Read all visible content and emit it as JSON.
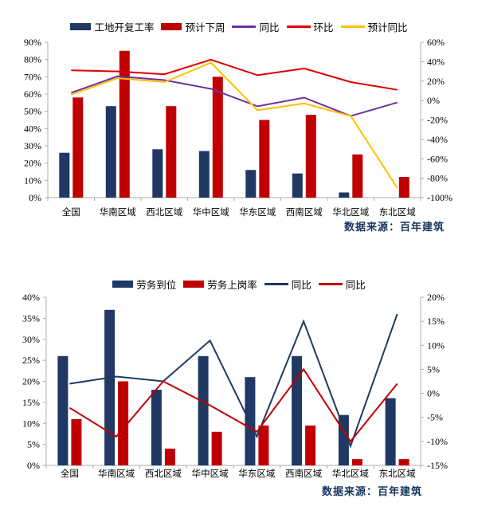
{
  "chart_data": [
    {
      "type": "bar+line",
      "title": "",
      "legend_position": "top",
      "grid": false,
      "source_note": "数据来源：百年建筑",
      "categories": [
        "全国",
        "华南区域",
        "西北区域",
        "华中区域",
        "华东区域",
        "西南区域",
        "华北区域",
        "东北区域"
      ],
      "bar_series": [
        {
          "name": "工地开复工率",
          "axis": "left",
          "color": "#1F3864",
          "values": [
            26,
            53,
            28,
            27,
            16,
            14,
            3,
            0
          ]
        },
        {
          "name": "预计下周",
          "axis": "left",
          "color": "#C00000",
          "values": [
            58,
            85,
            53,
            70,
            45,
            48,
            25,
            12
          ]
        }
      ],
      "line_series": [
        {
          "name": "同比",
          "axis": "right",
          "color": "#7030A0",
          "values": [
            8,
            25,
            21,
            12,
            -6,
            3,
            -16,
            -2
          ]
        },
        {
          "name": "环比",
          "axis": "right",
          "color": "#DD0000",
          "values": [
            31,
            30,
            27,
            42,
            26,
            33,
            19,
            11
          ]
        },
        {
          "name": "预计同比",
          "axis": "right",
          "color": "#FFC000",
          "values": [
            6,
            23,
            19,
            39,
            -10,
            -3,
            -16,
            -90
          ]
        }
      ],
      "left_axis": {
        "min": 0,
        "max": 90,
        "step": 10,
        "unit": "%"
      },
      "right_axis": {
        "min": -100,
        "max": 60,
        "step": 20,
        "unit": "%"
      }
    },
    {
      "type": "bar+line",
      "title": "",
      "legend_position": "top",
      "grid": false,
      "source_note": "数据来源：百年建筑",
      "categories": [
        "全国",
        "华南区域",
        "西北区域",
        "华中区域",
        "华东区域",
        "西南区域",
        "华北区域",
        "东北区域"
      ],
      "bar_series": [
        {
          "name": "劳务到位",
          "axis": "left",
          "color": "#1F3864",
          "values": [
            26,
            37,
            18,
            26,
            21,
            26,
            12,
            16
          ]
        },
        {
          "name": "劳务上岗率",
          "axis": "left",
          "color": "#C00000",
          "values": [
            11,
            20,
            4,
            8,
            9.5,
            9.5,
            1.5,
            1.5
          ]
        }
      ],
      "line_series": [
        {
          "name": "同比",
          "axis": "right",
          "color": "#1F3864",
          "values": [
            2,
            3.5,
            2.5,
            11,
            -9,
            15,
            -11,
            16.5
          ]
        },
        {
          "name": "同比",
          "axis": "right",
          "color": "#C00000",
          "values": [
            -3,
            -9,
            2.5,
            -2.5,
            -8,
            5,
            -10,
            2
          ]
        }
      ],
      "left_axis": {
        "min": 0,
        "max": 40,
        "step": 5,
        "unit": "%"
      },
      "right_axis": {
        "min": -15,
        "max": 20,
        "step": 5,
        "unit": "%"
      }
    }
  ]
}
